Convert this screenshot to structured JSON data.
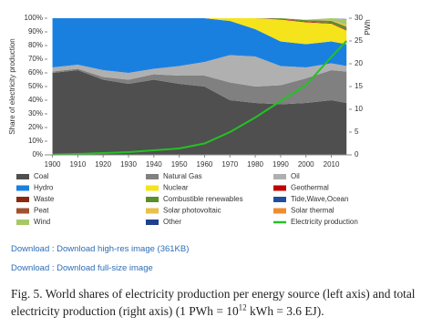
{
  "chart_data": {
    "type": "stacked-area",
    "y_label": "Share of electricity production",
    "y2_label": "PWh",
    "x": [
      1900,
      1910,
      1920,
      1930,
      1940,
      1950,
      1960,
      1970,
      1980,
      1990,
      2000,
      2010,
      2016
    ],
    "xlim": [
      1898,
      2017
    ],
    "xticks": [
      1900,
      1910,
      1920,
      1930,
      1940,
      1950,
      1960,
      1970,
      1980,
      1990,
      2000,
      2010
    ],
    "ylim": [
      0,
      100
    ],
    "yticks": [
      {
        "value": 0,
        "label": "0%"
      },
      {
        "value": 10,
        "label": "10%"
      },
      {
        "value": 20,
        "label": "20%"
      },
      {
        "value": 30,
        "label": "30%"
      },
      {
        "value": 40,
        "label": "40%"
      },
      {
        "value": 50,
        "label": "50%"
      },
      {
        "value": 60,
        "label": "60%"
      },
      {
        "value": 70,
        "label": "70%"
      },
      {
        "value": 80,
        "label": "80%"
      },
      {
        "value": 90,
        "label": "90%"
      },
      {
        "value": 100,
        "label": "100%"
      }
    ],
    "y2lim": [
      0,
      30
    ],
    "y2ticks": [
      0,
      5,
      10,
      15,
      20,
      25,
      30
    ],
    "series": [
      {
        "name": "Coal",
        "color": "#4f4f4f",
        "values": [
          60,
          62,
          55,
          52,
          55,
          52,
          50,
          40,
          38,
          37,
          38,
          40,
          38
        ]
      },
      {
        "name": "Natural Gas",
        "color": "#808080",
        "values": [
          1,
          1,
          2,
          3,
          4,
          6,
          8,
          13,
          12,
          14,
          18,
          22,
          23
        ]
      },
      {
        "name": "Oil",
        "color": "#b0b0b0",
        "values": [
          3,
          3,
          5,
          5,
          4,
          7,
          10,
          20,
          22,
          14,
          8,
          5,
          4
        ]
      },
      {
        "name": "Hydro",
        "color": "#1a80e0",
        "values": [
          36,
          34,
          38,
          40,
          37,
          35,
          32,
          25,
          20,
          18,
          17,
          16,
          16
        ]
      },
      {
        "name": "Nuclear",
        "color": "#f5e31c",
        "values": [
          0,
          0,
          0,
          0,
          0,
          0,
          0,
          2,
          8,
          16,
          16,
          13,
          10
        ]
      },
      {
        "name": "Geothermal",
        "color": "#c00000",
        "values": [
          0,
          0,
          0,
          0,
          0,
          0,
          0,
          0,
          0,
          0.3,
          0.3,
          0.3,
          0.3
        ]
      },
      {
        "name": "Waste",
        "color": "#8a2a0c",
        "values": [
          0,
          0,
          0,
          0,
          0,
          0,
          0,
          0,
          0,
          0.2,
          0.3,
          0.3,
          0.4
        ]
      },
      {
        "name": "Combustible renewables",
        "color": "#5a8f2a",
        "values": [
          0,
          0,
          0,
          0,
          0,
          0,
          0,
          0,
          0,
          0.5,
          1,
          1.5,
          2
        ]
      },
      {
        "name": "Tide,Wave,Ocean",
        "color": "#1f4fa0",
        "values": [
          0,
          0,
          0,
          0,
          0,
          0,
          0,
          0,
          0,
          0,
          0,
          0,
          0
        ]
      },
      {
        "name": "Peat",
        "color": "#a0522d",
        "values": [
          0,
          0,
          0,
          0,
          0,
          0,
          0,
          0,
          0,
          0,
          0.1,
          0.1,
          0.1
        ]
      },
      {
        "name": "Solar photovoltaic",
        "color": "#e8c04a",
        "values": [
          0,
          0,
          0,
          0,
          0,
          0,
          0,
          0,
          0,
          0,
          0,
          0.2,
          1.3
        ]
      },
      {
        "name": "Solar thermal",
        "color": "#f08c30",
        "values": [
          0,
          0,
          0,
          0,
          0,
          0,
          0,
          0,
          0,
          0,
          0,
          0,
          0.1
        ]
      },
      {
        "name": "Wind",
        "color": "#a8c868",
        "values": [
          0,
          0,
          0,
          0,
          0,
          0,
          0,
          0,
          0,
          0,
          0.2,
          1.6,
          4
        ]
      },
      {
        "name": "Other",
        "color": "#1f3f8f",
        "values": [
          0,
          0,
          0,
          0,
          0,
          0,
          0,
          0,
          0,
          0,
          0,
          0,
          0.2
        ]
      },
      {
        "name": "Electricity production",
        "color": "#22c222",
        "axis": "y2",
        "values": [
          0.07,
          0.2,
          0.4,
          0.6,
          1.0,
          1.4,
          2.5,
          5,
          8.2,
          11.8,
          15.3,
          21.5,
          25
        ]
      }
    ]
  },
  "links": [
    "Download : Download high-res image (361KB)",
    "Download : Download full-size image"
  ],
  "caption": {
    "before": "Fig. 5. World shares of electricity production per energy source (left axis) and total electricity production (right axis) (1 PWh = 10",
    "superscript": "12",
    "after": " kWh = 3.6 EJ)."
  }
}
